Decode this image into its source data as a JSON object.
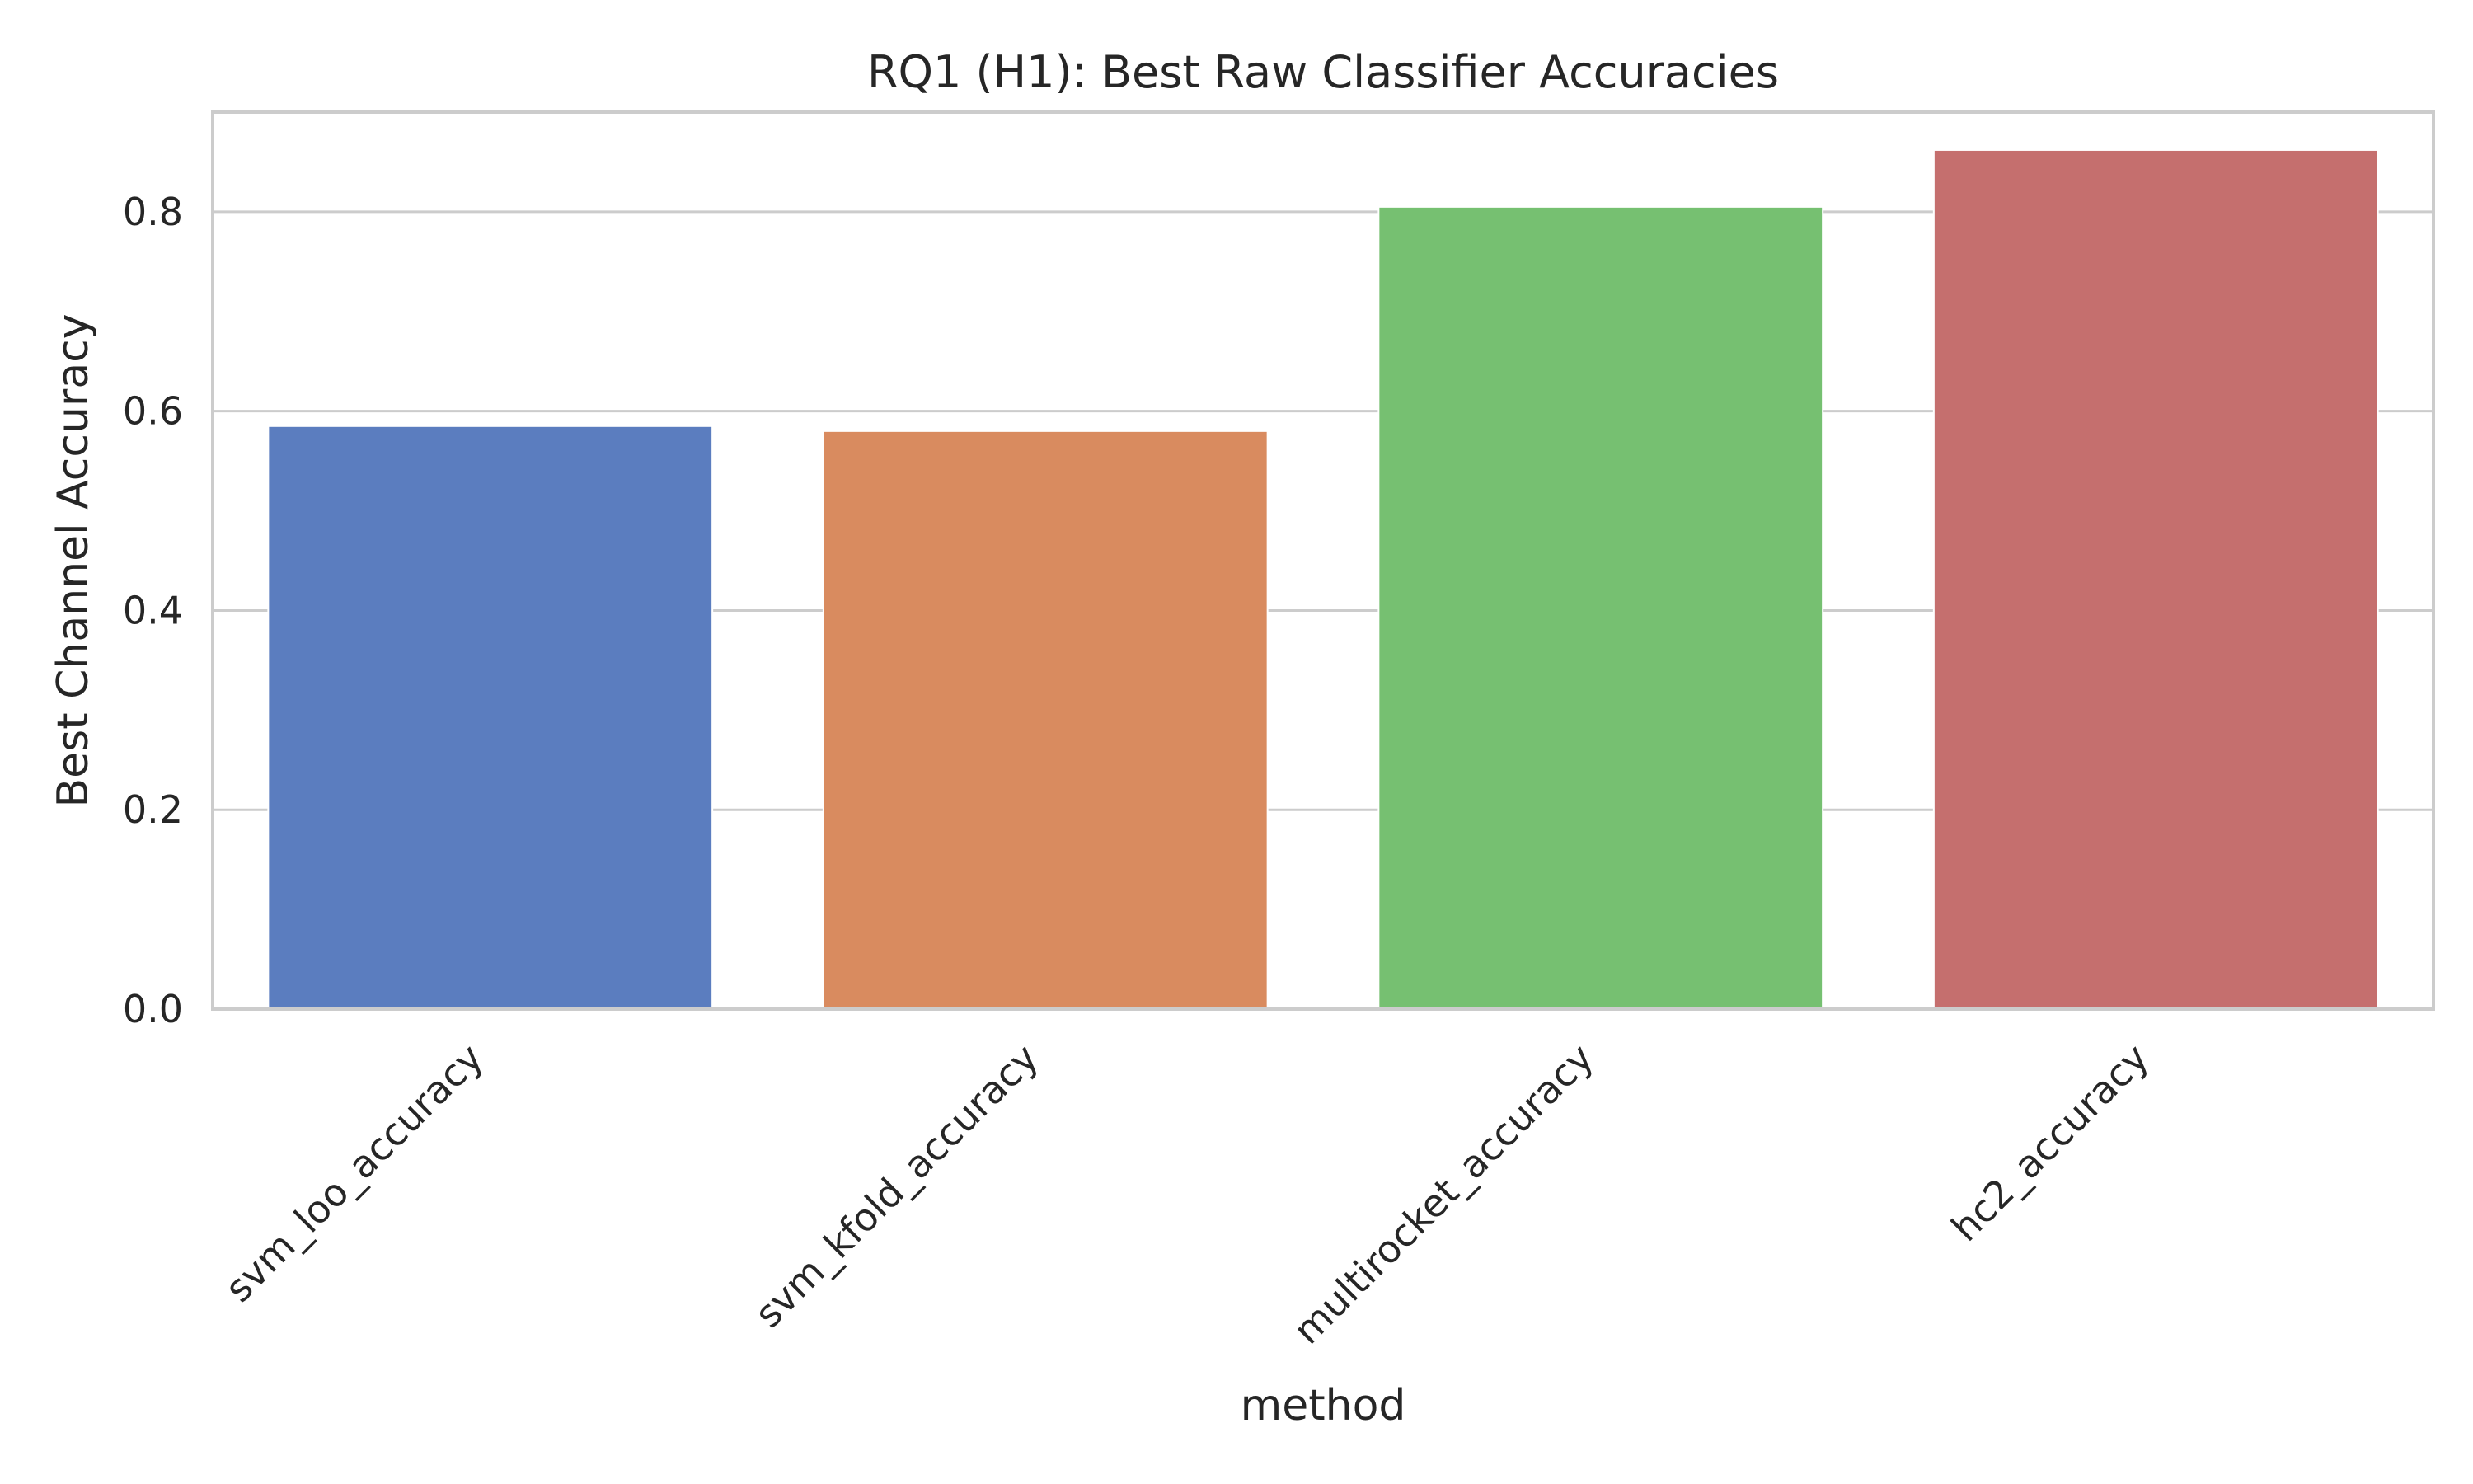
{
  "chart_data": {
    "type": "bar",
    "title": "RQ1 (H1): Best Raw Classifier Accuracies",
    "xlabel": "method",
    "ylabel": "Best Channel Accuracy",
    "categories": [
      "svm_loo_accuracy",
      "svm_kfold_accuracy",
      "multirocket_accuracy",
      "hc2_accuracy"
    ],
    "values": [
      0.585,
      0.58,
      0.805,
      0.862
    ],
    "colors": [
      "#5b7dbf",
      "#d98b5f",
      "#76c071",
      "#c56f6e"
    ],
    "ylim": [
      0,
      0.9
    ],
    "yticks": [
      0.0,
      0.2,
      0.4,
      0.6,
      0.8
    ],
    "ytick_labels": [
      "0.0",
      "0.2",
      "0.4",
      "0.6",
      "0.8"
    ],
    "grid": true,
    "legend": "none"
  }
}
